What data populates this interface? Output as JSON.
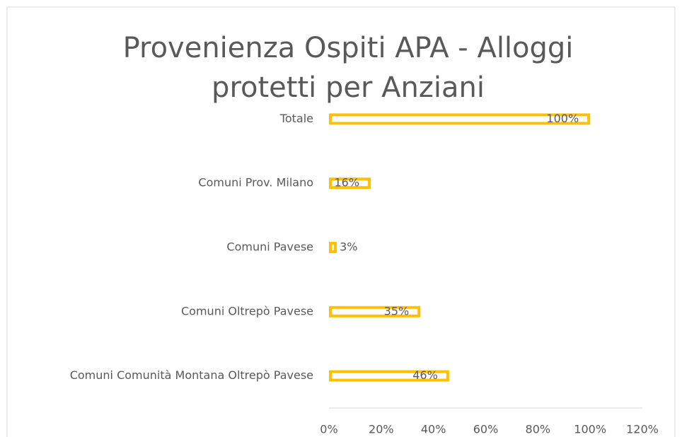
{
  "chart_data": {
    "type": "bar",
    "orientation": "horizontal",
    "title": "Provenienza Ospiti APA - Alloggi protetti per Anziani",
    "categories": [
      "Totale",
      "Comuni Prov. Milano",
      "Comuni Pavese",
      "Comuni Oltrepò Pavese",
      "Comuni Comunità Montana Oltrepò Pavese"
    ],
    "values": [
      100,
      16,
      3,
      35,
      46
    ],
    "value_labels": [
      "100%",
      "16%",
      "3%",
      "35%",
      "46%"
    ],
    "color": "#FFC000",
    "xlim": [
      0,
      120
    ],
    "xticks": [
      {
        "value": 0,
        "label": "0%"
      },
      {
        "value": 20,
        "label": "20%"
      },
      {
        "value": 40,
        "label": "40%"
      },
      {
        "value": 60,
        "label": "60%"
      },
      {
        "value": 80,
        "label": "80%"
      },
      {
        "value": 100,
        "label": "100%"
      },
      {
        "value": 120,
        "label": "120%"
      }
    ],
    "grid": false
  }
}
